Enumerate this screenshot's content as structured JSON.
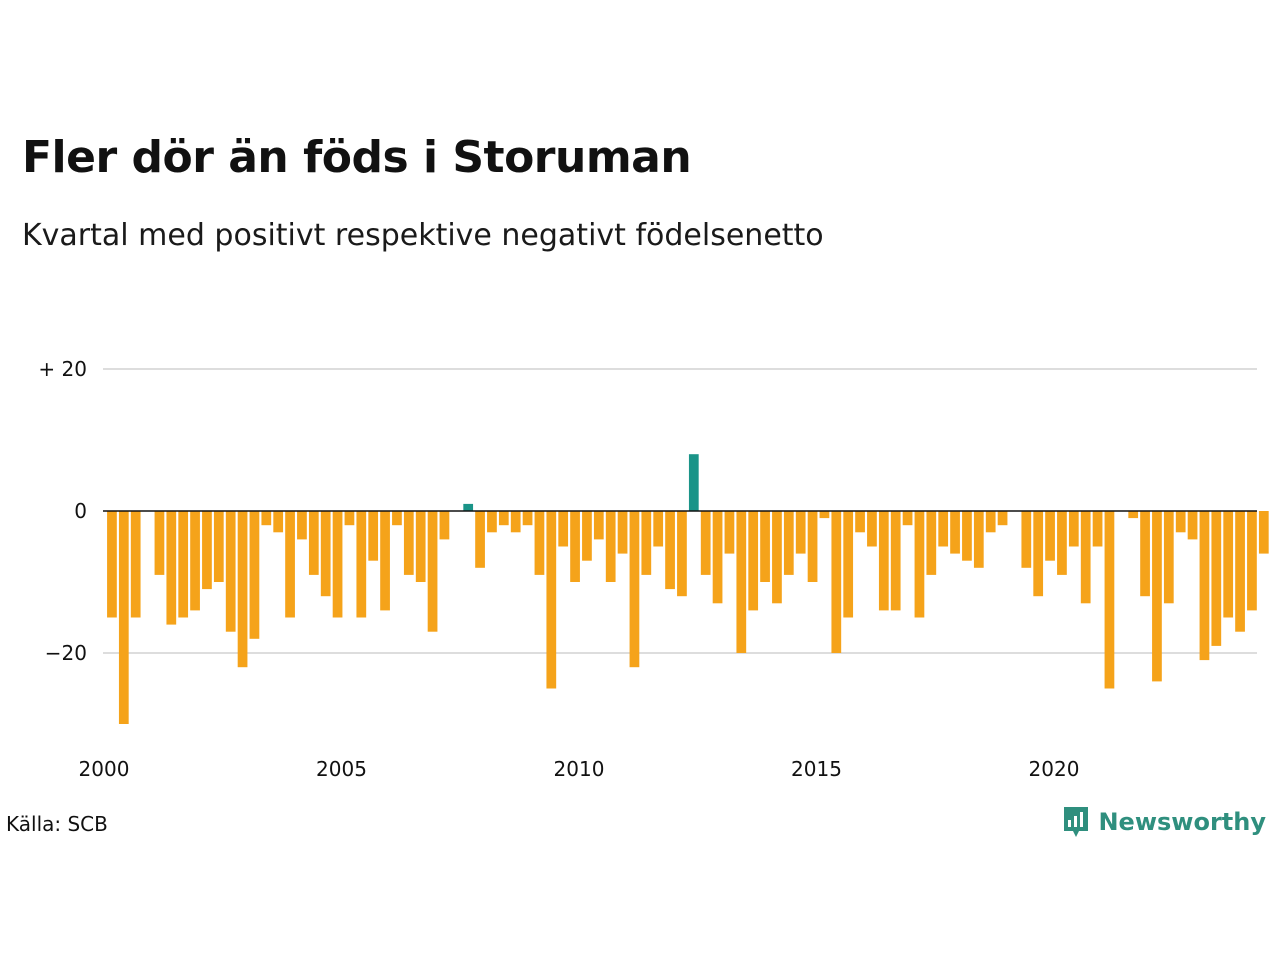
{
  "title": "Fler dör än föds i Storuman",
  "subtitle": "Kvartal med positivt respektive negativt födelsenetto",
  "source": "Källa: SCB",
  "brand": {
    "name": "Newsworthy",
    "icon": "newsworthy-logo-icon",
    "color": "#2f8f7e"
  },
  "colors": {
    "positive": "#1a9488",
    "negative": "#f5a31a",
    "grid": "#dddddd",
    "zero_line": "#111111"
  },
  "chart_data": {
    "type": "bar",
    "title": "Fler dör än föds i Storuman",
    "subtitle": "Kvartal med positivt respektive negativt födelsenetto",
    "xlabel": "",
    "ylabel": "",
    "ylim": [
      -31,
      22
    ],
    "xlim": [
      2000,
      2024.5
    ],
    "grid": true,
    "y_ticks": [
      {
        "value": 20,
        "label": "+ 20"
      },
      {
        "value": 0,
        "label": "0"
      },
      {
        "value": -20,
        "label": "−20"
      }
    ],
    "x_ticks": [
      {
        "value": 2000,
        "label": "2000"
      },
      {
        "value": 2005,
        "label": "2005"
      },
      {
        "value": 2010,
        "label": "2010"
      },
      {
        "value": 2015,
        "label": "2015"
      },
      {
        "value": 2020,
        "label": "2020"
      }
    ],
    "series": [
      {
        "values": [
          -15,
          -30,
          -15,
          0,
          -9,
          -16,
          -15,
          -14,
          -11,
          -10,
          -17,
          -22,
          -18,
          -2,
          -3,
          -15,
          -4,
          -9,
          -12,
          -15,
          -2,
          -15,
          -7,
          -14,
          -2,
          -9,
          -10,
          -17,
          -4,
          0,
          1,
          -8,
          -3,
          -2,
          -3,
          -2,
          -9,
          -25,
          -5,
          -10,
          -7,
          -4,
          -10,
          -6,
          -22,
          -9,
          -5,
          -11,
          -12,
          8,
          -9,
          -13,
          -6,
          -20,
          -14,
          -10,
          -13,
          -9,
          -6,
          -10,
          -1,
          -20,
          -15,
          -3,
          -5,
          -14,
          -14,
          -2,
          -15,
          -9,
          -5,
          -6,
          -7,
          -8,
          -3,
          -2,
          0,
          -8,
          -12,
          -7,
          -9,
          -5,
          -13,
          -5,
          -25,
          0,
          -1,
          -12,
          -24,
          -13,
          -3,
          -4,
          -21,
          -19,
          -15,
          -17,
          -14,
          -6
        ]
      }
    ]
  }
}
